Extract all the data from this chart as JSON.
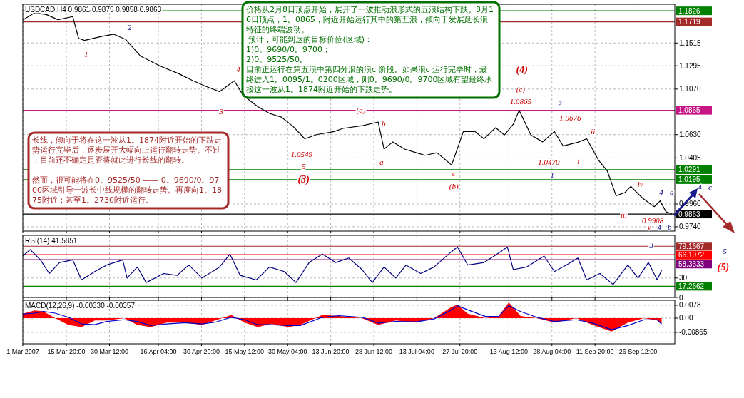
{
  "chart_data": [
    {
      "type": "line",
      "title": "USDCAD,H4  0.9861 0.9875 0.9858 0.9863",
      "xlim": [
        "2007-03-01",
        "2007-10-09"
      ],
      "xticks": [
        {
          "value": "2007-03-01",
          "label": null
        },
        {
          "value": "2007-03-15T20:00",
          "label": null
        },
        {
          "value": "2007-03-30T12:00",
          "label": null
        },
        {
          "value": "2007-04-16T04:00",
          "label": null
        },
        {
          "value": "2007-04-30T20:00",
          "label": null
        },
        {
          "value": "2007-05-15T12:00",
          "label": null
        },
        {
          "value": "2007-05-30T04:00",
          "label": null
        },
        {
          "value": "2007-06-13T20:00",
          "label": null
        },
        {
          "value": "2007-06-28T12:00",
          "label": null
        },
        {
          "value": "2007-07-13T04:00",
          "label": null
        },
        {
          "value": "2007-07-27T20:00",
          "label": null
        },
        {
          "value": "2007-08-13T12:00",
          "label": null
        },
        {
          "value": "2007-08-28T04:00",
          "label": null
        },
        {
          "value": "2007-09-11T20:00",
          "label": null
        },
        {
          "value": "2007-09-26T12:00",
          "label": null
        }
      ],
      "ylim": [
        0.9698,
        1.1889
      ],
      "yticks": [
        {
          "value": 0.974,
          "label": "0.9740"
        },
        {
          "value": 0.996,
          "label": "0.9960"
        },
        {
          "value": 1.0405,
          "label": "1.0405"
        },
        {
          "value": 1.063,
          "label": "1.0630"
        },
        {
          "value": 1.107,
          "label": "1.1070"
        },
        {
          "value": 1.1295,
          "label": "1.1295"
        },
        {
          "value": 1.1515,
          "label": "1.1515"
        }
      ],
      "tick_labels": "y",
      "grid": true,
      "series": [
        {
          "color": "#000000",
          "x": [
            "2007-03-01",
            "2007-03-05",
            "2007-03-09",
            "2007-03-13",
            "2007-03-18",
            "2007-03-20",
            "2007-03-22",
            "2007-03-28",
            "2007-04-01",
            "2007-04-05",
            "2007-04-10",
            "2007-04-17",
            "2007-04-23",
            "2007-04-28",
            "2007-05-02",
            "2007-05-07",
            "2007-05-12",
            "2007-05-15",
            "2007-05-20",
            "2007-05-24",
            "2007-05-28",
            "2007-06-01",
            "2007-06-05",
            "2007-06-09",
            "2007-06-15",
            "2007-06-18",
            "2007-06-25",
            "2007-06-30",
            "2007-07-02",
            "2007-07-05",
            "2007-07-09",
            "2007-07-13",
            "2007-07-16",
            "2007-07-20",
            "2007-07-23",
            "2007-07-25",
            "2007-07-29",
            "2007-08-02",
            "2007-08-05",
            "2007-08-09",
            "2007-08-12",
            "2007-08-15",
            "2007-08-17",
            "2007-08-21",
            "2007-08-25",
            "2007-08-29",
            "2007-09-01",
            "2007-09-06",
            "2007-09-09",
            "2007-09-13",
            "2007-09-16",
            "2007-09-19",
            "2007-09-22",
            "2007-09-24",
            "2007-09-28",
            "2007-10-02",
            "2007-10-04",
            "2007-10-06",
            "2007-10-08"
          ],
          "values": [
            1.1737,
            1.1806,
            1.179,
            1.174,
            1.177,
            1.156,
            1.154,
            1.158,
            1.16,
            1.155,
            1.139,
            1.129,
            1.122,
            1.115,
            1.11,
            1.1045,
            1.115,
            1.101,
            1.09,
            1.0835,
            1.08,
            1.071,
            1.059,
            1.063,
            1.066,
            1.069,
            1.0718,
            1.0752,
            1.049,
            1.056,
            1.049,
            1.0455,
            1.043,
            1.0455,
            1.0385,
            1.0336,
            1.066,
            1.066,
            1.059,
            1.0697,
            1.0627,
            1.073,
            1.0865,
            1.0627,
            1.056,
            1.066,
            1.052,
            1.0557,
            1.059,
            1.0385,
            1.028,
            1.004,
            1.007,
            1.013,
            1.0017,
            0.9934,
            0.999,
            0.9885,
            0.9863
          ]
        }
      ],
      "ref_lines": [
        {
          "axis": "y",
          "value": 1.1826,
          "label": "1.1826",
          "color": "#008000"
        },
        {
          "axis": "y",
          "value": 1.1719,
          "label": "1.1719",
          "color": "#a52a2a"
        },
        {
          "axis": "y",
          "value": 1.0865,
          "label": "1.0865",
          "color": "#c71585"
        },
        {
          "axis": "y",
          "value": 1.0291,
          "label": "1.0291",
          "color": "#008000"
        },
        {
          "axis": "y",
          "value": 1.0195,
          "label": "1.0195",
          "color": "#008000"
        },
        {
          "axis": "y",
          "value": 0.9863,
          "label": "0.9863",
          "color": "#000000"
        }
      ],
      "annotations": [
        "价格从2月8日顶点开始，展开了一波推动浪形式的五浪结构下跌。8月16日顶点，1。0865，附近开始运行其中的第五浪，倾向于发展延长浪特征的终端波动。",
        " 预计，可能到达的目标价位(区域)：",
        "1)0。9690/0。9700；",
        "2)0。9525/50。",
        "目前正运行在第五浪中第四分浪的浪c 阶段。如果浪c 运行完毕时，最终进入1。0095/1。0200区域，则0。9690/0。9700区域有望最终承接这一波从1。1874附近开始的下跌走势。",
        "长线，倾向于将在这一波从1。1874附近开始的下跌走势运行完毕后，逐步展开大幅向上运行翻转走势。不过，目前还不确定是否将就此进行长线的翻转。",
        "然而，很可能将在0。9525/50 —— 0。9690/0。9700区域引导一波长中线规模的翻转走势。再度向1。1875附近；甚至1。2730附近运行。",
        "4 - c",
        "3",
        "5",
        "(5)",
        "1",
        "2",
        "3",
        "4",
        "1.0549",
        "5",
        "(3)",
        "(a)",
        "b",
        "a",
        "c",
        "(b)",
        "(4)",
        "(c)",
        "1.0865",
        "2",
        "1.0676",
        "ii",
        "1.0470",
        "i",
        "1",
        "iv",
        "4 - a",
        "iii",
        "0.9908",
        "v",
        "4 - b"
      ]
    },
    {
      "type": "line",
      "title": "RSI(14) 41.5851",
      "xlim": [
        "2007-03-01",
        "2007-10-09"
      ],
      "xticks": [
        {
          "value": "2007-03-01",
          "label": null
        },
        {
          "value": "2007-03-15T20:00",
          "label": null
        },
        {
          "value": "2007-03-30T12:00",
          "label": null
        },
        {
          "value": "2007-04-16T04:00",
          "label": null
        },
        {
          "value": "2007-04-30T20:00",
          "label": null
        },
        {
          "value": "2007-05-15T12:00",
          "label": null
        },
        {
          "value": "2007-05-30T04:00",
          "label": null
        },
        {
          "value": "2007-06-13T20:00",
          "label": null
        },
        {
          "value": "2007-06-28T12:00",
          "label": null
        },
        {
          "value": "2007-07-13T04:00",
          "label": null
        },
        {
          "value": "2007-07-27T20:00",
          "label": null
        },
        {
          "value": "2007-08-13T12:00",
          "label": null
        },
        {
          "value": "2007-08-28T04:00",
          "label": null
        },
        {
          "value": "2007-09-11T20:00",
          "label": null
        },
        {
          "value": "2007-09-26T12:00",
          "label": null
        }
      ],
      "ylim": [
        0,
        96
      ],
      "yticks": [
        0,
        30
      ],
      "tick_labels": "y",
      "grid": true,
      "series": [
        {
          "color": "#000080",
          "x": [
            "2007-03-01",
            "2007-03-03T12:00",
            "2007-03-05",
            "2007-03-07",
            "2007-03-10",
            "2007-03-13T12:00",
            "2007-03-18",
            "2007-03-21",
            "2007-03-25T12:00",
            "2007-03-29T12:00",
            "2007-04-04",
            "2007-04-05T12:00",
            "2007-04-09",
            "2007-04-12",
            "2007-04-18",
            "2007-04-22T12:00",
            "2007-04-26T12:00",
            "2007-05-01",
            "2007-05-07",
            "2007-05-10T12:00",
            "2007-05-14",
            "2007-05-19T12:00",
            "2007-05-24",
            "2007-05-29",
            "2007-06-02",
            "2007-06-06T12:00",
            "2007-06-11",
            "2007-06-15T12:00",
            "2007-06-20",
            "2007-06-24T12:00",
            "2007-06-28",
            "2007-07-02",
            "2007-07-06",
            "2007-07-09T12:00",
            "2007-07-14T12:00",
            "2007-07-19",
            "2007-07-25",
            "2007-07-27",
            "2007-07-30T12:00",
            "2007-08-05",
            "2007-08-08T12:00",
            "2007-08-13",
            "2007-08-15",
            "2007-08-19T12:00",
            "2007-08-25T12:00",
            "2007-08-29",
            "2007-09-02",
            "2007-09-06",
            "2007-09-09",
            "2007-09-13T12:00",
            "2007-09-18",
            "2007-09-23",
            "2007-09-26T12:00",
            "2007-09-30",
            "2007-10-03",
            "2007-10-04T12:00"
          ],
          "values": [
            64,
            74,
            67,
            58,
            37,
            54,
            58,
            27,
            40,
            50,
            58,
            30,
            47,
            23,
            37,
            34,
            50,
            30,
            47,
            67,
            34,
            27,
            47,
            40,
            23,
            54,
            67,
            54,
            61,
            43,
            23,
            47,
            30,
            50,
            37,
            47,
            71,
            78,
            50,
            54,
            64,
            78,
            43,
            47,
            64,
            40,
            50,
            61,
            27,
            37,
            20,
            50,
            30,
            54,
            27,
            42
          ]
        }
      ],
      "ref_lines": [
        {
          "axis": "y",
          "value": 79.1667,
          "label": "79.1667",
          "color": "#a52a2a"
        },
        {
          "axis": "y",
          "value": 66.1972,
          "label": "66.1972",
          "color": "#ff0000"
        },
        {
          "axis": "y",
          "value": 58.3333,
          "label": "58.3333",
          "color": "#800080"
        },
        {
          "axis": "y",
          "value": 17.2662,
          "label": "17.2662",
          "color": "#008000"
        }
      ]
    },
    {
      "type": "area",
      "title": "MACD(12,26,9) -0.00330 -0.00357",
      "xlim": [
        "2007-03-01",
        "2007-10-09"
      ],
      "xticks": [
        {
          "value": "2007-03-01",
          "label": "1 Mar 2007"
        },
        {
          "value": "2007-03-15T20:00",
          "label": "15 Mar 20:00"
        },
        {
          "value": "2007-03-30T12:00",
          "label": "30 Mar 12:00"
        },
        {
          "value": "2007-04-16T04:00",
          "label": "16 Apr 04:00"
        },
        {
          "value": "2007-04-30T20:00",
          "label": "30 Apr 20:00"
        },
        {
          "value": "2007-05-15T12:00",
          "label": "15 May 12:00"
        },
        {
          "value": "2007-05-30T04:00",
          "label": "30 May 04:00"
        },
        {
          "value": "2007-06-13T20:00",
          "label": "13 Jun 20:00"
        },
        {
          "value": "2007-06-28T12:00",
          "label": "28 Jun 12:00"
        },
        {
          "value": "2007-07-13T04:00",
          "label": "13 Jul 04:00"
        },
        {
          "value": "2007-07-27T20:00",
          "label": "27 Jul 20:00"
        },
        {
          "value": "2007-08-13T12:00",
          "label": "13 Aug 12:00"
        },
        {
          "value": "2007-08-28T04:00",
          "label": "28 Aug 04:00"
        },
        {
          "value": "2007-09-11T20:00",
          "label": "11 Sep 20:00"
        },
        {
          "value": "2007-09-26T12:00",
          "label": "26 Sep 12:00"
        }
      ],
      "ylim": [
        -0.0156,
        0.0108
      ],
      "yticks": [
        {
          "value": -0.00865,
          "label": "-0.00865"
        },
        {
          "value": 0,
          "label": "0.00"
        },
        {
          "value": 0.0078,
          "label": "0.0078"
        }
      ],
      "grid": true,
      "x": [
        "2007-03-01",
        "2007-03-05",
        "2007-03-08",
        "2007-03-12",
        "2007-03-16T12:00",
        "2007-03-21",
        "2007-03-25T12:00",
        "2007-03-29T12:00",
        "2007-04-04T12:00",
        "2007-04-09",
        "2007-04-13T12:00",
        "2007-04-19",
        "2007-04-25",
        "2007-05-01",
        "2007-05-05T12:00",
        "2007-05-11",
        "2007-05-15T12:00",
        "2007-05-20",
        "2007-05-24T12:00",
        "2007-05-30T12:00",
        "2007-06-03T12:00",
        "2007-06-11",
        "2007-06-16T12:00",
        "2007-06-24T12:00",
        "2007-06-30",
        "2007-07-06",
        "2007-07-13",
        "2007-07-19",
        "2007-07-25",
        "2007-07-27",
        "2007-07-30T12:00",
        "2007-08-05T12:00",
        "2007-08-10",
        "2007-08-13T12:00",
        "2007-08-17T12:00",
        "2007-08-23",
        "2007-08-29",
        "2007-09-05T12:00",
        "2007-09-11",
        "2007-09-17T12:00",
        "2007-09-23",
        "2007-09-28T12:00",
        "2007-10-03",
        "2007-10-04T12:00"
      ],
      "series": [
        {
          "color": "#ff0000",
          "values": [
            0.0027,
            0.0046,
            0.0041,
            0,
            -0.0041,
            -0.0054,
            -0.0014,
            -0.0014,
            0,
            -0.0041,
            -0.0054,
            -0.0027,
            -0.0027,
            -0.0041,
            -0.0014,
            0.0019,
            -0.0027,
            -0.0054,
            -0.0035,
            -0.0054,
            -0.0041,
            0.0019,
            0.0013,
            0,
            -0.0041,
            -0.0014,
            -0.0027,
            0,
            0.0068,
            0.0081,
            0.0027,
            0,
            0.0013,
            0.0095,
            0.0013,
            0,
            -0.0027,
            0,
            -0.0041,
            -0.0081,
            -0.0027,
            0,
            -0.0014,
            -0.0033
          ]
        },
        {
          "type": "line",
          "color": "#0000cc",
          "values": [
            0.0025,
            0.003,
            0.004,
            0.003,
            0.0005,
            -0.0035,
            -0.004,
            -0.002,
            -0.001,
            -0.002,
            -0.0045,
            -0.0035,
            -0.0028,
            -0.0035,
            -0.0025,
            0.0005,
            -0.001,
            -0.004,
            -0.004,
            -0.0045,
            -0.0045,
            0.0005,
            0.0015,
            0.0005,
            -0.003,
            -0.002,
            -0.0022,
            -0.0005,
            0.005,
            0.0075,
            0.005,
            0.001,
            0.001,
            0.0075,
            0.004,
            0.0005,
            -0.002,
            -0.001,
            -0.003,
            -0.007,
            -0.0045,
            -0.001,
            -0.001,
            -0.0036
          ]
        }
      ]
    }
  ]
}
